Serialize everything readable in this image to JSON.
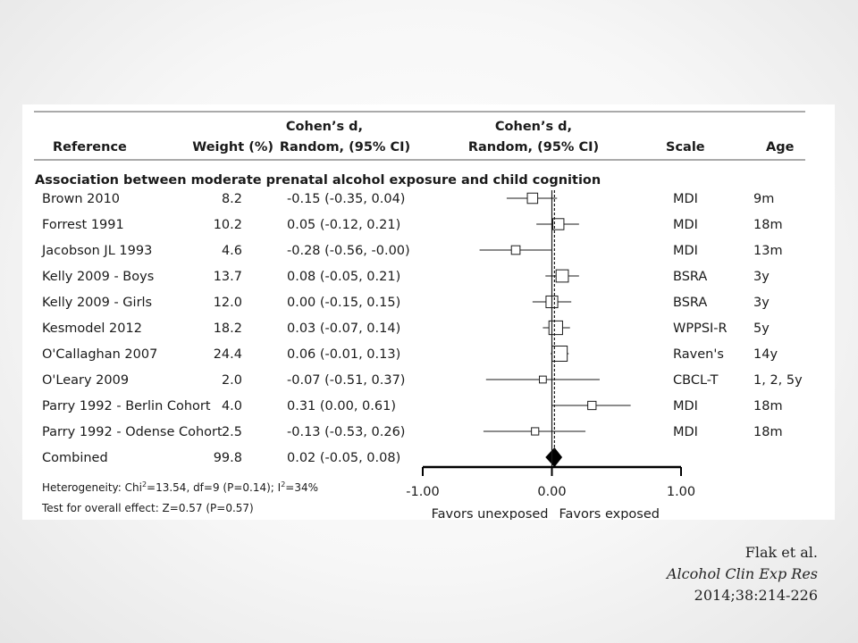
{
  "chart_data": {
    "type": "forest",
    "title": "",
    "columns": {
      "reference": "Reference",
      "weight": "Weight (%)",
      "ci_line1": "Cohen’s d,",
      "ci_line2": "Random, (95% CI)",
      "plot_line1": "Cohen’s d,",
      "plot_line2": "Random, (95% CI)",
      "scale": "Scale",
      "age": "Age"
    },
    "section_title": "Association between moderate prenatal alcohol exposure and child cognition",
    "studies": [
      {
        "reference": "Brown 2010",
        "weight": "8.2",
        "ci_text": "-0.15 (-0.35, 0.04)",
        "d": -0.15,
        "lo": -0.35,
        "hi": 0.04,
        "scale": "MDI",
        "age": "9m"
      },
      {
        "reference": "Forrest 1991",
        "weight": "10.2",
        "ci_text": "0.05 (-0.12, 0.21)",
        "d": 0.05,
        "lo": -0.12,
        "hi": 0.21,
        "scale": "MDI",
        "age": "18m"
      },
      {
        "reference": "Jacobson JL 1993",
        "weight": "4.6",
        "ci_text": "-0.28 (-0.56, -0.00)",
        "d": -0.28,
        "lo": -0.56,
        "hi": -0.0,
        "scale": "MDI",
        "age": "13m"
      },
      {
        "reference": "Kelly 2009 - Boys",
        "weight": "13.7",
        "ci_text": "0.08 (-0.05, 0.21)",
        "d": 0.08,
        "lo": -0.05,
        "hi": 0.21,
        "scale": "BSRA",
        "age": "3y"
      },
      {
        "reference": "Kelly 2009 - Girls",
        "weight": "12.0",
        "ci_text": "0.00 (-0.15, 0.15)",
        "d": 0.0,
        "lo": -0.15,
        "hi": 0.15,
        "scale": "BSRA",
        "age": "3y"
      },
      {
        "reference": "Kesmodel 2012",
        "weight": "18.2",
        "ci_text": "0.03 (-0.07, 0.14)",
        "d": 0.03,
        "lo": -0.07,
        "hi": 0.14,
        "scale": "WPPSI-R",
        "age": "5y"
      },
      {
        "reference": "O'Callaghan 2007",
        "weight": "24.4",
        "ci_text": "0.06 (-0.01, 0.13)",
        "d": 0.06,
        "lo": -0.01,
        "hi": 0.13,
        "scale": "Raven's",
        "age": "14y"
      },
      {
        "reference": "O'Leary 2009",
        "weight": "2.0",
        "ci_text": "-0.07 (-0.51, 0.37)",
        "d": -0.07,
        "lo": -0.51,
        "hi": 0.37,
        "scale": "CBCL-T",
        "age": "1, 2, 5y"
      },
      {
        "reference": "Parry 1992 - Berlin Cohort",
        "weight": "4.0",
        "ci_text": "0.31 (0.00, 0.61)",
        "d": 0.31,
        "lo": 0.0,
        "hi": 0.61,
        "scale": "MDI",
        "age": "18m"
      },
      {
        "reference": "Parry 1992 - Odense Cohort",
        "weight": "2.5",
        "ci_text": "-0.13 (-0.53, 0.26)",
        "d": -0.13,
        "lo": -0.53,
        "hi": 0.26,
        "scale": "MDI",
        "age": "18m"
      }
    ],
    "combined": {
      "reference": "Combined",
      "weight": "99.8",
      "ci_text": "0.02 (-0.05, 0.08)",
      "d": 0.02,
      "lo": -0.05,
      "hi": 0.08
    },
    "heterogeneity_prefix": "Heterogeneity: Chi",
    "heterogeneity_mid": "=13.54, df=9 (P=0.14); I",
    "heterogeneity_end": "=34%",
    "superscript": "2",
    "overall_effect": "Test for overall effect: Z=0.57 (P=0.57)",
    "xlim": [
      -1.0,
      1.0
    ],
    "x_ticks": [
      -1.0,
      0.0,
      1.0
    ],
    "x_tick_labels": [
      "-1.00",
      "0.00",
      "1.00"
    ],
    "favors_left": "Favors unexposed",
    "favors_right": "Favors exposed"
  },
  "citation": {
    "authors": "Flak et al.",
    "journal": "Alcohol Clin Exp Res",
    "ref": "2014;38:214-226"
  }
}
